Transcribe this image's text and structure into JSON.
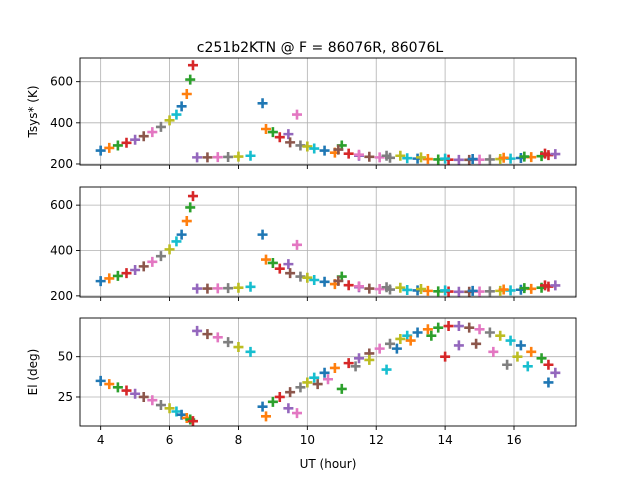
{
  "chart_data": {
    "type": "scatter",
    "title": "c251b2KTN @ F = 86076R, 86076L",
    "xlabel": "UT (hour)",
    "xlim": [
      3.4,
      17.8
    ],
    "x_ticks": [
      4,
      6,
      8,
      10,
      12,
      14,
      16
    ],
    "x_tick_labels": [
      "4",
      "6",
      "8",
      "10",
      "12",
      "14",
      "16"
    ],
    "grid": true,
    "legend": "none",
    "marker": "plus",
    "colors": [
      "#1f77b4",
      "#ff7f0e",
      "#2ca02c",
      "#d62728",
      "#9467bd",
      "#8c564b",
      "#e377c2",
      "#7f7f7f",
      "#bcbd22",
      "#17becf"
    ],
    "panels": [
      {
        "id": "tsys-r",
        "ylabel": "Tsys* (K)",
        "ylim": [
          195,
          715
        ],
        "y_ticks": [
          200,
          400,
          600
        ],
        "y_tick_labels": [
          "200",
          "400",
          "600"
        ],
        "show_x_tick_labels": false,
        "points": [
          [
            4.0,
            265
          ],
          [
            4.25,
            278
          ],
          [
            4.5,
            290
          ],
          [
            4.75,
            303
          ],
          [
            5.0,
            318
          ],
          [
            5.25,
            335
          ],
          [
            5.5,
            355
          ],
          [
            5.75,
            380
          ],
          [
            6.0,
            412
          ],
          [
            6.2,
            440
          ],
          [
            6.35,
            480
          ],
          [
            6.5,
            540
          ],
          [
            6.6,
            610
          ],
          [
            6.68,
            680
          ],
          [
            6.8,
            232
          ],
          [
            7.1,
            232
          ],
          [
            7.4,
            233
          ],
          [
            7.7,
            234
          ],
          [
            8.0,
            236
          ],
          [
            8.35,
            240
          ],
          [
            8.7,
            495
          ],
          [
            8.8,
            370
          ],
          [
            9.0,
            355
          ],
          [
            9.2,
            330
          ],
          [
            9.45,
            345
          ],
          [
            9.5,
            305
          ],
          [
            9.7,
            440
          ],
          [
            9.8,
            290
          ],
          [
            10.0,
            285
          ],
          [
            10.2,
            275
          ],
          [
            10.5,
            265
          ],
          [
            10.8,
            255
          ],
          [
            11.0,
            290
          ],
          [
            11.2,
            250
          ],
          [
            11.5,
            240
          ],
          [
            11.8,
            235
          ],
          [
            12.1,
            232
          ],
          [
            12.4,
            230
          ],
          [
            12.7,
            240
          ],
          [
            12.9,
            228
          ],
          [
            13.2,
            226
          ],
          [
            13.5,
            224
          ],
          [
            13.8,
            222
          ],
          [
            14.1,
            221
          ],
          [
            14.4,
            220
          ],
          [
            14.7,
            220
          ],
          [
            15.0,
            221
          ],
          [
            15.3,
            222
          ],
          [
            15.6,
            224
          ],
          [
            15.9,
            226
          ],
          [
            16.2,
            229
          ],
          [
            16.5,
            233
          ],
          [
            16.8,
            238
          ],
          [
            17.0,
            243
          ],
          [
            17.2,
            248
          ]
        ],
        "extra_points": [
          [
            10.9,
            270
          ],
          [
            11.5,
            245
          ],
          [
            12.3,
            240
          ],
          [
            13.3,
            232
          ],
          [
            14.0,
            226
          ],
          [
            14.8,
            224
          ],
          [
            15.7,
            230
          ],
          [
            16.3,
            236
          ],
          [
            16.9,
            250
          ]
        ]
      },
      {
        "id": "tsys-l",
        "ylabel": "",
        "ylim": [
          195,
          680
        ],
        "y_ticks": [
          200,
          400,
          600
        ],
        "y_tick_labels": [
          "200",
          "400",
          "600"
        ],
        "show_x_tick_labels": false,
        "points": [
          [
            4.0,
            265
          ],
          [
            4.25,
            277
          ],
          [
            4.5,
            288
          ],
          [
            4.75,
            300
          ],
          [
            5.0,
            314
          ],
          [
            5.25,
            330
          ],
          [
            5.5,
            350
          ],
          [
            5.75,
            375
          ],
          [
            6.0,
            405
          ],
          [
            6.2,
            440
          ],
          [
            6.35,
            470
          ],
          [
            6.5,
            530
          ],
          [
            6.6,
            590
          ],
          [
            6.68,
            640
          ],
          [
            6.8,
            232
          ],
          [
            7.1,
            232
          ],
          [
            7.4,
            233
          ],
          [
            7.7,
            234
          ],
          [
            8.0,
            236
          ],
          [
            8.35,
            240
          ],
          [
            8.7,
            470
          ],
          [
            8.8,
            360
          ],
          [
            9.0,
            345
          ],
          [
            9.2,
            320
          ],
          [
            9.45,
            340
          ],
          [
            9.5,
            300
          ],
          [
            9.7,
            425
          ],
          [
            9.8,
            285
          ],
          [
            10.0,
            280
          ],
          [
            10.2,
            270
          ],
          [
            10.5,
            262
          ],
          [
            10.8,
            252
          ],
          [
            11.0,
            285
          ],
          [
            11.2,
            247
          ],
          [
            11.5,
            238
          ],
          [
            11.8,
            232
          ],
          [
            12.1,
            230
          ],
          [
            12.4,
            228
          ],
          [
            12.7,
            236
          ],
          [
            12.9,
            226
          ],
          [
            13.2,
            224
          ],
          [
            13.5,
            222
          ],
          [
            13.8,
            220
          ],
          [
            14.1,
            219
          ],
          [
            14.4,
            218
          ],
          [
            14.7,
            218
          ],
          [
            15.0,
            219
          ],
          [
            15.3,
            220
          ],
          [
            15.6,
            222
          ],
          [
            15.9,
            224
          ],
          [
            16.2,
            227
          ],
          [
            16.5,
            231
          ],
          [
            16.8,
            236
          ],
          [
            17.0,
            241
          ],
          [
            17.2,
            246
          ]
        ],
        "extra_points": [
          [
            10.9,
            266
          ],
          [
            11.5,
            242
          ],
          [
            12.3,
            238
          ],
          [
            13.3,
            230
          ],
          [
            14.0,
            224
          ],
          [
            14.8,
            222
          ],
          [
            15.7,
            228
          ],
          [
            16.3,
            234
          ],
          [
            16.9,
            246
          ]
        ]
      },
      {
        "id": "elevation",
        "ylabel": "El (deg)",
        "ylim": [
          7,
          74
        ],
        "y_ticks": [
          25,
          50
        ],
        "y_tick_labels": [
          "25",
          "50"
        ],
        "show_x_tick_labels": true,
        "points": [
          [
            4.0,
            35
          ],
          [
            4.25,
            33
          ],
          [
            4.5,
            31
          ],
          [
            4.75,
            29
          ],
          [
            5.0,
            27
          ],
          [
            5.25,
            25
          ],
          [
            5.5,
            23
          ],
          [
            5.75,
            20
          ],
          [
            6.0,
            18
          ],
          [
            6.2,
            16
          ],
          [
            6.35,
            14
          ],
          [
            6.5,
            12
          ],
          [
            6.6,
            11
          ],
          [
            6.68,
            10
          ],
          [
            6.8,
            66
          ],
          [
            7.1,
            64
          ],
          [
            7.4,
            62
          ],
          [
            7.7,
            59
          ],
          [
            8.0,
            56
          ],
          [
            8.35,
            53
          ],
          [
            8.7,
            19
          ],
          [
            8.8,
            13
          ],
          [
            9.0,
            22
          ],
          [
            9.2,
            25
          ],
          [
            9.45,
            18
          ],
          [
            9.5,
            28
          ],
          [
            9.7,
            15
          ],
          [
            9.8,
            31
          ],
          [
            10.0,
            34
          ],
          [
            10.2,
            37
          ],
          [
            10.5,
            40
          ],
          [
            10.8,
            43
          ],
          [
            11.0,
            30
          ],
          [
            11.2,
            46
          ],
          [
            11.5,
            49
          ],
          [
            11.8,
            52
          ],
          [
            12.1,
            55
          ],
          [
            12.4,
            58
          ],
          [
            12.7,
            61
          ],
          [
            12.9,
            63
          ],
          [
            13.2,
            65
          ],
          [
            13.5,
            67
          ],
          [
            13.8,
            68
          ],
          [
            14.1,
            69
          ],
          [
            14.4,
            69
          ],
          [
            14.7,
            68
          ],
          [
            15.0,
            67
          ],
          [
            15.3,
            65
          ],
          [
            15.6,
            63
          ],
          [
            15.9,
            60
          ],
          [
            16.2,
            57
          ],
          [
            16.5,
            53
          ],
          [
            16.8,
            49
          ],
          [
            17.0,
            45
          ],
          [
            17.2,
            40
          ]
        ],
        "extra_points": [
          [
            10.3,
            33
          ],
          [
            10.6,
            36
          ],
          [
            11.4,
            44
          ],
          [
            11.8,
            48
          ],
          [
            12.3,
            42
          ],
          [
            12.6,
            55
          ],
          [
            13.0,
            60
          ],
          [
            13.6,
            63
          ],
          [
            14.0,
            50
          ],
          [
            14.4,
            57
          ],
          [
            14.9,
            58
          ],
          [
            15.4,
            53
          ],
          [
            15.8,
            45
          ],
          [
            16.1,
            50
          ],
          [
            16.4,
            44
          ],
          [
            17.0,
            34
          ]
        ]
      }
    ]
  }
}
